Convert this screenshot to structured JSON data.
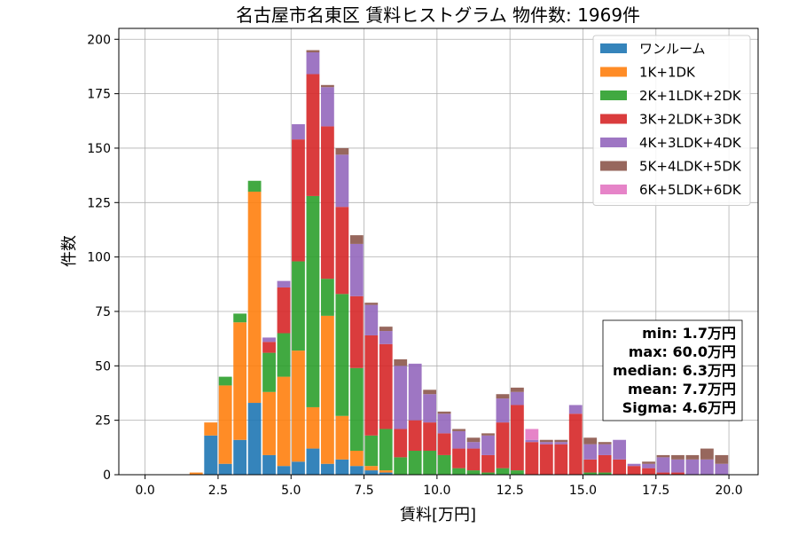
{
  "chart_data": {
    "type": "bar",
    "stacked": true,
    "title": "名古屋市名東区 賃料ヒストグラム 物件数: 1969件",
    "xlabel": "賃料[万円]",
    "ylabel": "件数",
    "xlim": [
      -0.9,
      21.0
    ],
    "ylim": [
      0,
      205
    ],
    "xticks": [
      0.0,
      2.5,
      5.0,
      7.5,
      10.0,
      12.5,
      15.0,
      17.5,
      20.0
    ],
    "xtick_labels": [
      "0.0",
      "2.5",
      "5.0",
      "7.5",
      "10.0",
      "12.5",
      "15.0",
      "17.5",
      "20.0"
    ],
    "yticks": [
      0,
      25,
      50,
      75,
      100,
      125,
      150,
      175,
      200
    ],
    "ytick_labels": [
      "0",
      "25",
      "50",
      "75",
      "100",
      "125",
      "150",
      "175",
      "200"
    ],
    "grid": true,
    "legend_position": "top-right",
    "bin_width": 0.5,
    "bins_start": [
      1.5,
      2.0,
      2.5,
      3.0,
      3.5,
      4.0,
      4.5,
      5.0,
      5.5,
      6.0,
      6.5,
      7.0,
      7.5,
      8.0,
      8.5,
      9.0,
      9.5,
      10.0,
      10.5,
      11.0,
      11.5,
      12.0,
      12.5,
      13.0,
      13.5,
      14.0,
      14.5,
      15.0,
      15.5,
      16.0,
      16.5,
      17.0,
      17.5,
      18.0,
      18.5,
      19.0,
      19.5
    ],
    "series": [
      {
        "name": "ワンルーム",
        "color": "#1f77b4",
        "values": [
          0,
          18,
          5,
          16,
          33,
          9,
          4,
          6,
          12,
          5,
          7,
          4,
          2,
          1,
          0,
          0,
          0,
          0,
          0,
          0,
          0,
          0,
          0,
          0,
          0,
          0,
          0,
          0,
          0,
          0,
          0,
          0,
          0,
          0,
          0,
          0,
          0
        ]
      },
      {
        "name": "1K+1DK",
        "color": "#ff7f0e",
        "values": [
          1,
          6,
          36,
          54,
          97,
          29,
          41,
          51,
          19,
          68,
          20,
          7,
          2,
          1,
          0,
          0,
          0,
          0,
          0,
          0,
          0,
          0,
          0,
          0,
          0,
          0,
          0,
          0,
          0,
          0,
          0,
          0,
          0,
          0,
          0,
          0,
          0
        ]
      },
      {
        "name": "2K+1LDK+2DK",
        "color": "#2ca02c",
        "values": [
          0,
          0,
          4,
          4,
          5,
          18,
          20,
          41,
          97,
          17,
          56,
          38,
          14,
          19,
          8,
          11,
          11,
          9,
          3,
          2,
          1,
          3,
          2,
          0,
          0,
          0,
          0,
          1,
          1,
          0,
          0,
          0,
          0,
          0,
          0,
          0,
          0
        ]
      },
      {
        "name": "3K+2LDK+3DK",
        "color": "#d62728",
        "values": [
          0,
          0,
          0,
          0,
          0,
          5,
          21,
          56,
          56,
          70,
          40,
          33,
          46,
          39,
          13,
          14,
          13,
          10,
          9,
          10,
          8,
          21,
          30,
          15,
          14,
          14,
          28,
          6,
          8,
          7,
          4,
          3,
          1,
          1,
          0,
          0,
          0
        ]
      },
      {
        "name": "4K+3LDK+4DK",
        "color": "#9467bd",
        "values": [
          0,
          0,
          0,
          0,
          0,
          2,
          3,
          7,
          10,
          18,
          24,
          24,
          14,
          6,
          29,
          26,
          13,
          9,
          8,
          3,
          9,
          11,
          6,
          1,
          1,
          1,
          4,
          7,
          5,
          9,
          1,
          2,
          7,
          6,
          7,
          7,
          5
        ]
      },
      {
        "name": "5K+4LDK+5DK",
        "color": "#8c564b",
        "values": [
          0,
          0,
          0,
          0,
          0,
          0,
          0,
          0,
          1,
          1,
          3,
          4,
          1,
          2,
          3,
          0,
          2,
          1,
          1,
          2,
          1,
          2,
          2,
          0,
          1,
          1,
          0,
          3,
          1,
          0,
          0,
          1,
          1,
          2,
          2,
          5,
          4
        ]
      },
      {
        "name": "6K+5LDK+6DK",
        "color": "#e377c2",
        "values": [
          0,
          0,
          0,
          0,
          0,
          0,
          0,
          0,
          0,
          0,
          0,
          0,
          0,
          0,
          0,
          0,
          0,
          0,
          0,
          0,
          0,
          0,
          0,
          5,
          0,
          0,
          0,
          0,
          0,
          0,
          0,
          0,
          0,
          0,
          0,
          0,
          0
        ]
      }
    ],
    "stats": [
      "min: 1.7万円",
      "max: 60.0万円",
      "median: 6.3万円",
      "mean: 7.7万円",
      "Sigma: 4.6万円"
    ]
  }
}
